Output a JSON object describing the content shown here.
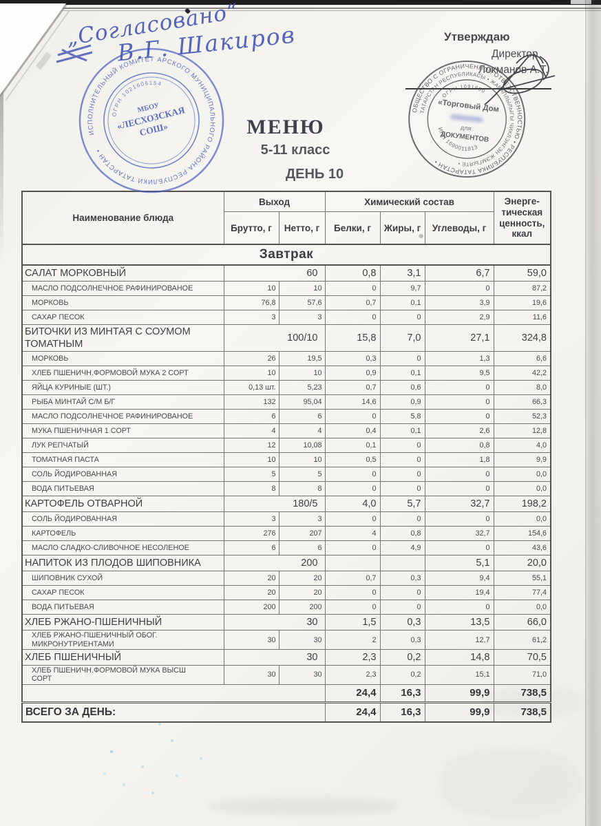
{
  "document": {
    "title": "МЕНЮ",
    "subtitle": "5-11 класс",
    "day": "ДЕНЬ 10"
  },
  "handwriting": {
    "agreed": "„Согласовано“",
    "signature_name": "В.Г. Шакиров"
  },
  "approval": {
    "approve": "Утверждаю",
    "role": "Директор",
    "name": "Локманов А.Т."
  },
  "stamps": {
    "school": {
      "ring": "ИСПОЛНИТЕЛЬНЫЙ КОМИТЕТ АРСКОГО МУНИЦИПАЛЬНОГО РАЙОНА РЕСПУБЛИКИ ТАТАРСТАН • ",
      "ogrn_arc": "ОГРН 1021606154",
      "center1": "МБОУ",
      "center2": "«ЛЕСХОЗСКАЯ",
      "center3": "СОШ»"
    },
    "company": {
      "ring_outer": "ОБЩЕСТВО С ОГРАНИЧЕННОЙ ОТВЕТСТВЕННОСТЬЮ • РЕСПУБЛИКА ТАТАРСТАН • ",
      "ring_inner": "ТАТАРСТАН РЕСПУБЛИКАСЫ • ЖАВАПЛЫЛЫГЫ ЧИКЛЭНГЭН ЖЭМГЫЯТЕ • ",
      "ogrn_arc": "ОГРН 1091690",
      "center1": "«Торговый Дом",
      "center2": "для",
      "center3": "ДОКУМЕНТОВ",
      "inn_arc": "ИНН 1690011813"
    }
  },
  "colors": {
    "stamp_blue": "#4a5fc1",
    "handwriting_blue": "#3f51b5",
    "ink": "#3d3f43"
  },
  "table": {
    "headers": {
      "dish": "Наименование блюда",
      "output_group": "Выход",
      "brutto": "Брутто, г",
      "netto": "Нетто, г",
      "chem_group": "Химический состав",
      "protein": "Белки, г",
      "fat": "Жиры, г",
      "carbs": "Углеводы, г",
      "energy": "Энерге-\nтическая\nценность,\nккал"
    },
    "section_label": "Завтрак",
    "rows": [
      {
        "type": "dish",
        "name": "САЛАТ МОРКОВНЫЙ",
        "output": "60",
        "protein": "0,8",
        "fat": "3,1",
        "carbs": "6,7",
        "kcal": "59,0"
      },
      {
        "type": "ingredient",
        "name": "МАСЛО ПОДСОЛНЕЧНОЕ РАФИНИРОВАНОЕ",
        "brutto": "10",
        "netto": "10",
        "protein": "0",
        "fat": "9,7",
        "carbs": "0",
        "kcal": "87,2"
      },
      {
        "type": "ingredient",
        "name": "МОРКОВЬ",
        "brutto": "76,8",
        "netto": "57,6",
        "protein": "0,7",
        "fat": "0,1",
        "carbs": "3,9",
        "kcal": "19,6"
      },
      {
        "type": "ingredient",
        "name": "САХАР ПЕСОК",
        "brutto": "3",
        "netto": "3",
        "protein": "0",
        "fat": "0",
        "carbs": "2,9",
        "kcal": "11,6"
      },
      {
        "type": "dish",
        "name": "БИТОЧКИ ИЗ МИНТАЯ С СОУМОМ ТОМАТНЫМ",
        "output": "100/10",
        "protein": "15,8",
        "fat": "7,0",
        "carbs": "27,1",
        "kcal": "324,8"
      },
      {
        "type": "ingredient",
        "name": "МОРКОВЬ",
        "brutto": "26",
        "netto": "19,5",
        "protein": "0,3",
        "fat": "0",
        "carbs": "1,3",
        "kcal": "6,6"
      },
      {
        "type": "ingredient",
        "name": "ХЛЕБ ПШЕНИЧН.ФОРМОВОЙ МУКА 2 СОРТ",
        "brutto": "10",
        "netto": "10",
        "protein": "0,9",
        "fat": "0,1",
        "carbs": "9,5",
        "kcal": "42,2"
      },
      {
        "type": "ingredient",
        "name": "ЯЙЦА КУРИНЫЕ (ШТ.)",
        "brutto": "0,13 шт.",
        "netto": "5,23",
        "protein": "0,7",
        "fat": "0,6",
        "carbs": "0",
        "kcal": "8,0"
      },
      {
        "type": "ingredient",
        "name": "РЫБА МИНТАЙ С/М Б/Г",
        "brutto": "132",
        "netto": "95,04",
        "protein": "14,6",
        "fat": "0,9",
        "carbs": "0",
        "kcal": "66,3"
      },
      {
        "type": "ingredient",
        "name": "МАСЛО ПОДСОЛНЕЧНОЕ РАФИНИРОВАНОЕ",
        "brutto": "6",
        "netto": "6",
        "protein": "0",
        "fat": "5,8",
        "carbs": "0",
        "kcal": "52,3"
      },
      {
        "type": "ingredient",
        "name": "МУКА ПШЕНИЧНАЯ 1 СОРТ",
        "brutto": "4",
        "netto": "4",
        "protein": "0,4",
        "fat": "0,1",
        "carbs": "2,6",
        "kcal": "12,8"
      },
      {
        "type": "ingredient",
        "name": "ЛУК РЕПЧАТЫЙ",
        "brutto": "12",
        "netto": "10,08",
        "protein": "0,1",
        "fat": "0",
        "carbs": "0,8",
        "kcal": "4,0"
      },
      {
        "type": "ingredient",
        "name": "ТОМАТНАЯ ПАСТА",
        "brutto": "10",
        "netto": "10",
        "protein": "0,5",
        "fat": "0",
        "carbs": "1,8",
        "kcal": "9,9"
      },
      {
        "type": "ingredient",
        "name": "СОЛЬ ЙОДИРОВАННАЯ",
        "brutto": "5",
        "netto": "5",
        "protein": "0",
        "fat": "0",
        "carbs": "0",
        "kcal": "0,0"
      },
      {
        "type": "ingredient",
        "name": "ВОДА ПИТЬЕВАЯ",
        "brutto": "8",
        "netto": "8",
        "protein": "0",
        "fat": "0",
        "carbs": "0",
        "kcal": "0,0"
      },
      {
        "type": "dish",
        "name": "КАРТОФЕЛЬ ОТВАРНОЙ",
        "output": "180/5",
        "protein": "4,0",
        "fat": "5,7",
        "carbs": "32,7",
        "kcal": "198,2"
      },
      {
        "type": "ingredient",
        "name": "СОЛЬ ЙОДИРОВАННАЯ",
        "brutto": "3",
        "netto": "3",
        "protein": "0",
        "fat": "0",
        "carbs": "0",
        "kcal": "0,0"
      },
      {
        "type": "ingredient",
        "name": "КАРТОФЕЛЬ",
        "brutto": "276",
        "netto": "207",
        "protein": "4",
        "fat": "0,8",
        "carbs": "32,7",
        "kcal": "154,6"
      },
      {
        "type": "ingredient",
        "name": "МАСЛО СЛАДКО-СЛИВОЧНОЕ НЕСОЛЕНОЕ",
        "brutto": "6",
        "netto": "6",
        "protein": "0",
        "fat": "4,9",
        "carbs": "0",
        "kcal": "43,6"
      },
      {
        "type": "dish",
        "name": "НАПИТОК ИЗ ПЛОДОВ ШИПОВНИКА",
        "output": "200",
        "protein": "",
        "fat": "",
        "carbs": "5,1",
        "kcal": "20,0"
      },
      {
        "type": "ingredient",
        "name": "ШИПОВНИК СУХОЙ",
        "brutto": "20",
        "netto": "20",
        "protein": "0,7",
        "fat": "0,3",
        "carbs": "9,4",
        "kcal": "55,1"
      },
      {
        "type": "ingredient",
        "name": "САХАР ПЕСОК",
        "brutto": "20",
        "netto": "20",
        "protein": "0",
        "fat": "0",
        "carbs": "19,4",
        "kcal": "77,4"
      },
      {
        "type": "ingredient",
        "name": "ВОДА ПИТЬЕВАЯ",
        "brutto": "200",
        "netto": "200",
        "protein": "0",
        "fat": "0",
        "carbs": "0",
        "kcal": "0,0"
      },
      {
        "type": "dish",
        "name": "ХЛЕБ РЖАНО-ПШЕНИЧНЫЙ",
        "output": "30",
        "protein": "1,5",
        "fat": "0,3",
        "carbs": "13,5",
        "kcal": "66,0"
      },
      {
        "type": "ingredient",
        "name": "ХЛЕБ РЖАНО-ПШЕНИЧНЫЙ ОБОГ. МИКРОНУТРИЕНТАМИ",
        "brutto": "30",
        "netto": "30",
        "protein": "2",
        "fat": "0,3",
        "carbs": "12,7",
        "kcal": "61,2"
      },
      {
        "type": "dish",
        "name": "ХЛЕБ ПШЕНИЧНЫЙ",
        "output": "30",
        "protein": "2,3",
        "fat": "0,2",
        "carbs": "14,8",
        "kcal": "70,5"
      },
      {
        "type": "ingredient",
        "name": "ХЛЕБ ПШЕНИЧН.ФОРМОВОЙ МУКА ВЫСШ СОРТ",
        "brutto": "30",
        "netto": "30",
        "protein": "2,3",
        "fat": "0,2",
        "carbs": "15,1",
        "kcal": "71,0"
      }
    ],
    "subtotal": {
      "protein": "24,4",
      "fat": "16,3",
      "carbs": "99,9",
      "kcal": "738,5"
    },
    "total": {
      "label": "ВСЕГО ЗА ДЕНЬ:",
      "protein": "24,4",
      "fat": "16,3",
      "carbs": "99,9",
      "kcal": "738,5"
    }
  }
}
